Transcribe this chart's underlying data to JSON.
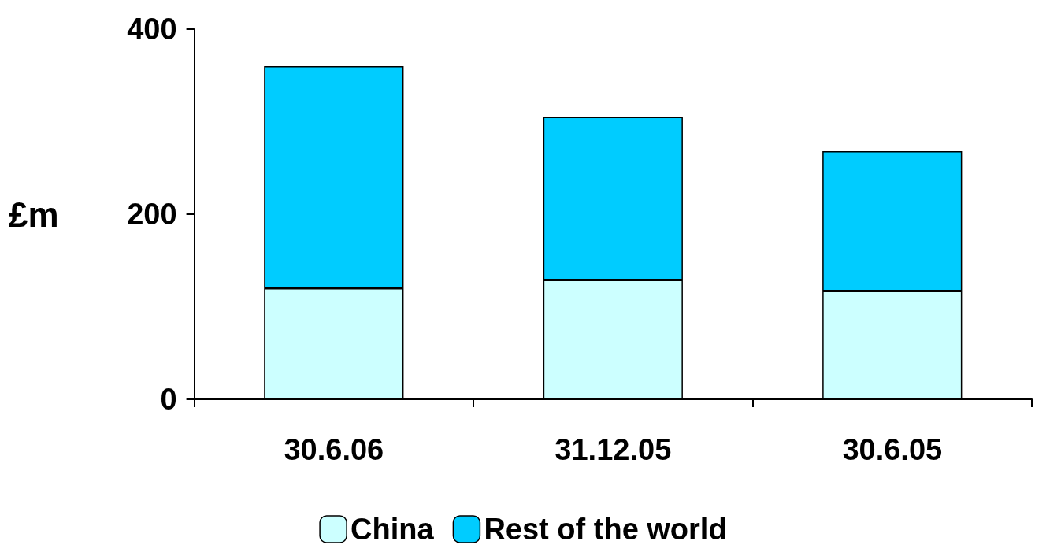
{
  "chart_data": {
    "type": "bar",
    "ylabel": "£m",
    "categories": [
      "30.6.06",
      "31.12.05",
      "30.6.05"
    ],
    "stacked": true,
    "series": [
      {
        "name": "China",
        "color": "#ccffff",
        "values": [
          120,
          129,
          117
        ]
      },
      {
        "name": "Rest of the world",
        "color": "#00ccff",
        "values": [
          240,
          176,
          151
        ]
      }
    ],
    "ylim": [
      0,
      400
    ],
    "yticks": [
      0,
      200,
      400
    ],
    "grid": false,
    "legend": "bottom"
  }
}
